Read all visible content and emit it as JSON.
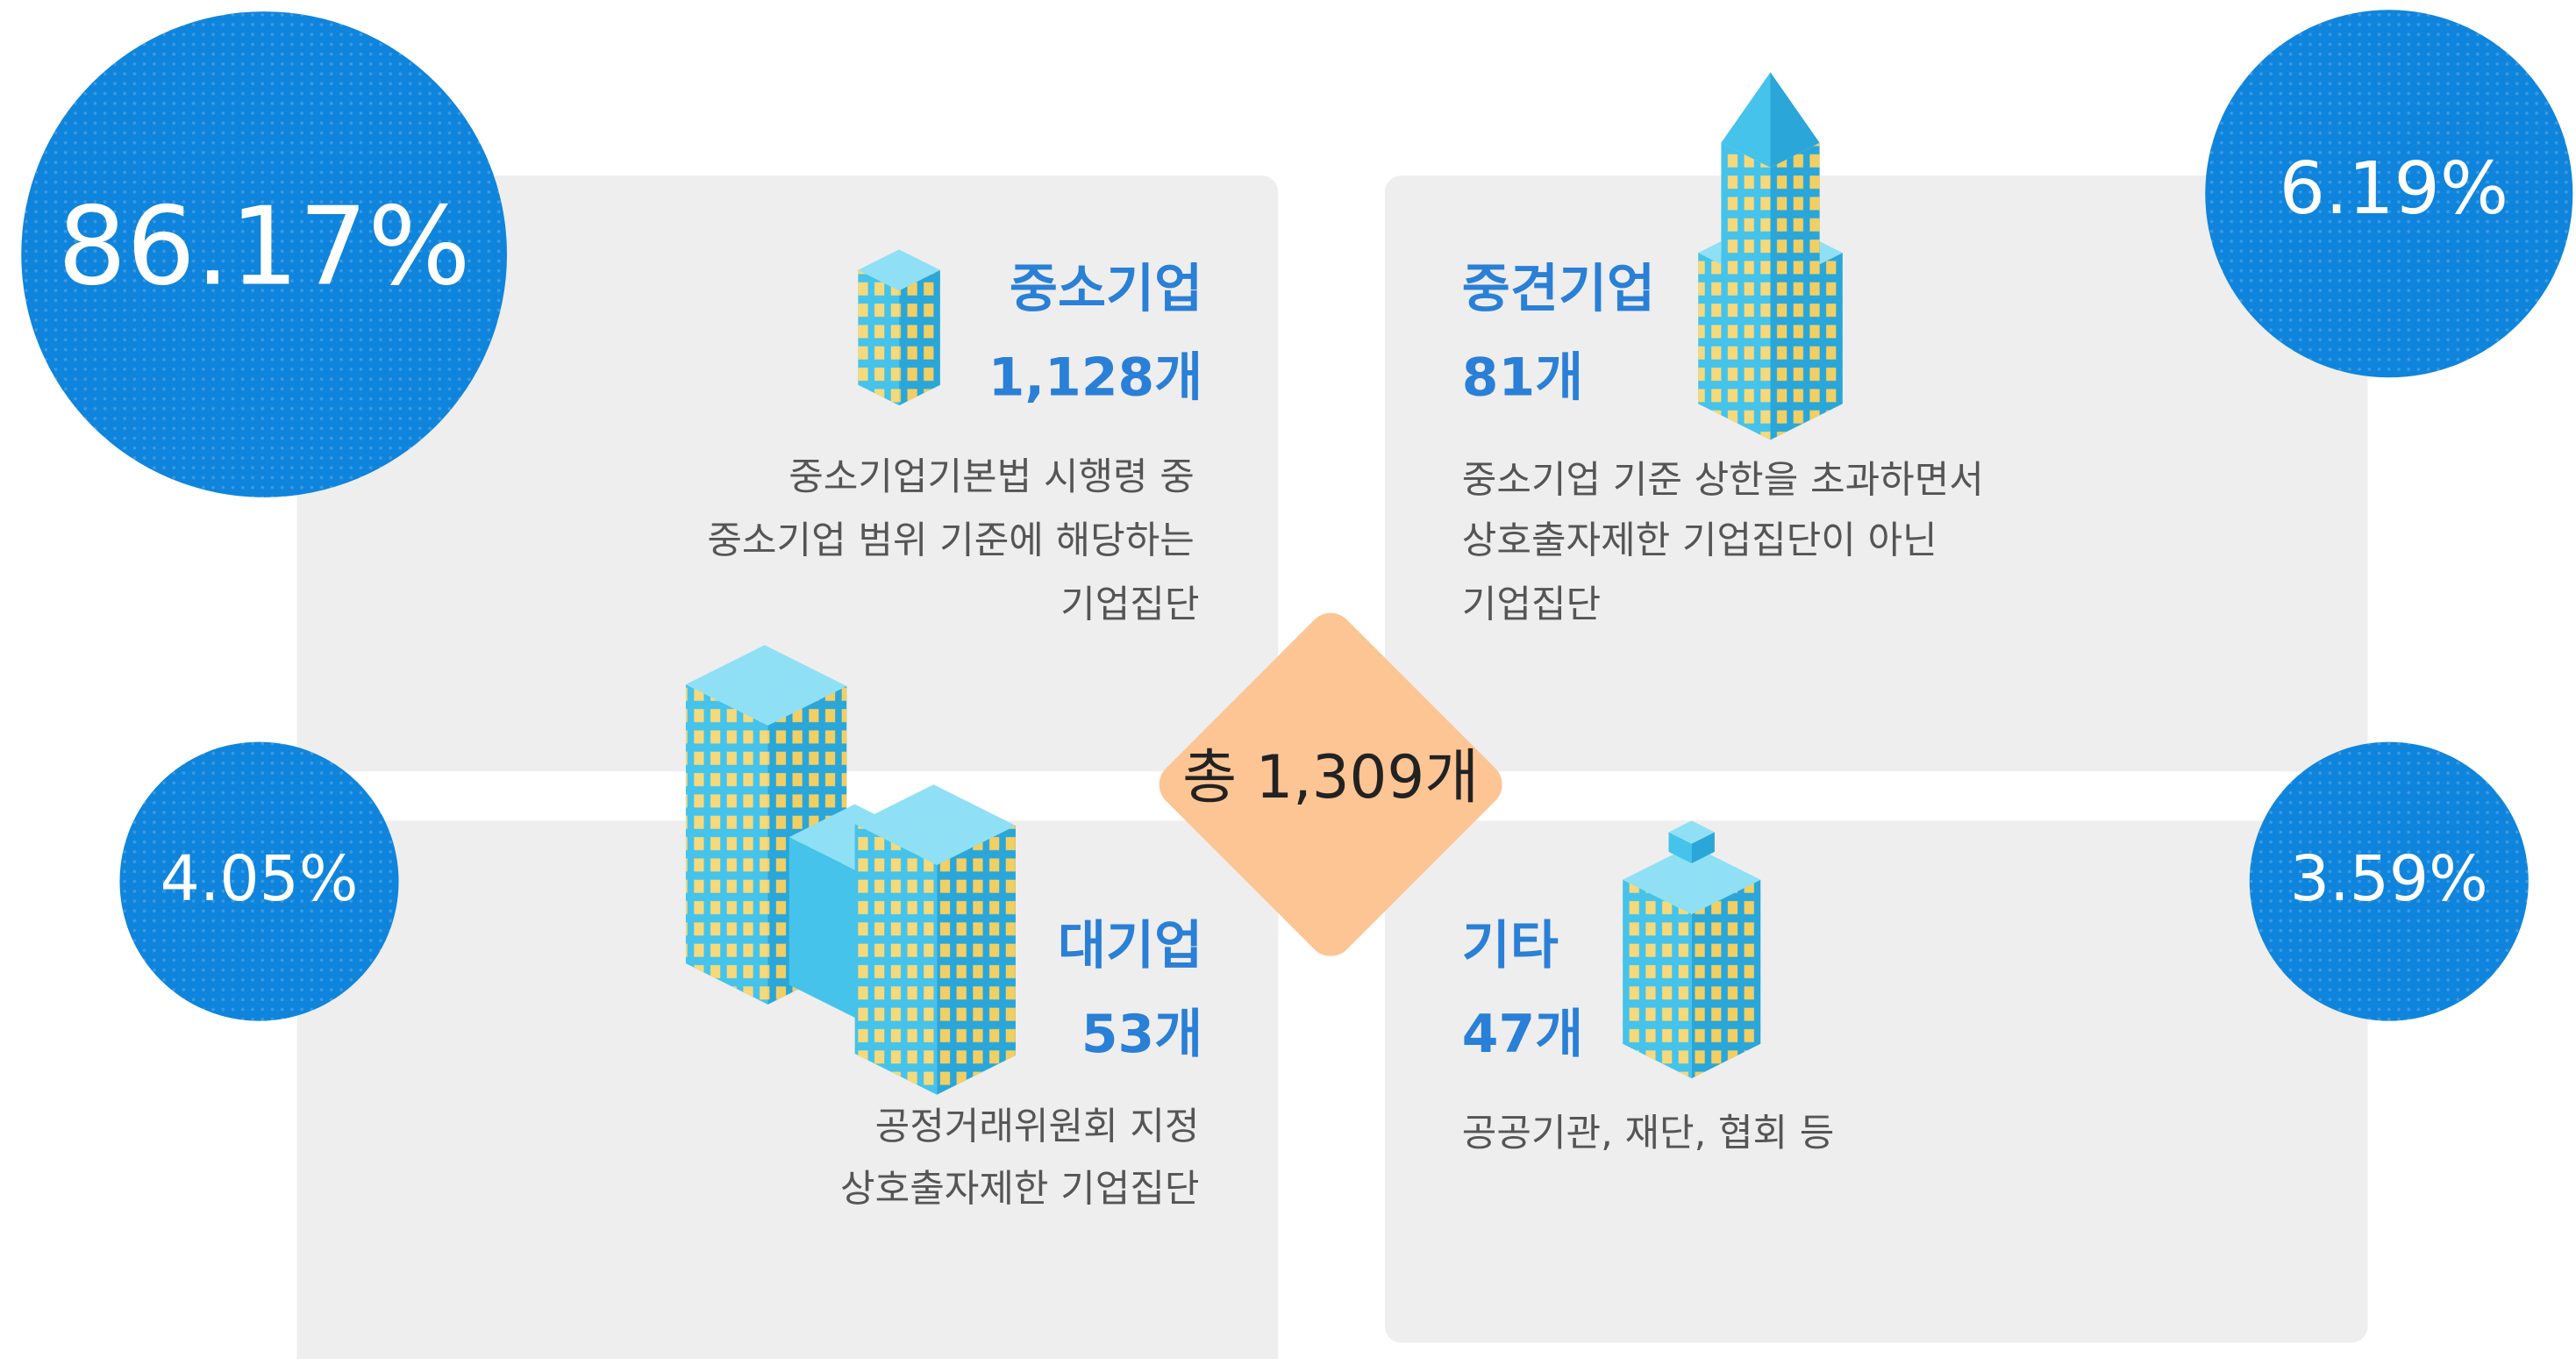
{
  "total": "총 1,309개",
  "segments": [
    {
      "percent": "86.17%",
      "name": "중소기업",
      "count": "1,128개",
      "description": [
        "중소기업기본법 시행령 중",
        "중소기업 범위 기준에 해당하는",
        "기업집단"
      ]
    },
    {
      "percent": "6.19%",
      "name": "중견기업",
      "count": "81개",
      "description": [
        "중소기업 기준 상한을 초과하면서",
        "상호출자제한 기업집단이 아닌",
        "기업집단"
      ]
    },
    {
      "percent": "4.05%",
      "name": "대기업",
      "count": "53개",
      "description": [
        "공정거래위원회 지정",
        "상호출자제한 기업집단"
      ]
    },
    {
      "percent": "3.59%",
      "name": "기타",
      "count": "47개",
      "description": [
        "공공기관, 재단, 협회 등"
      ]
    }
  ]
}
